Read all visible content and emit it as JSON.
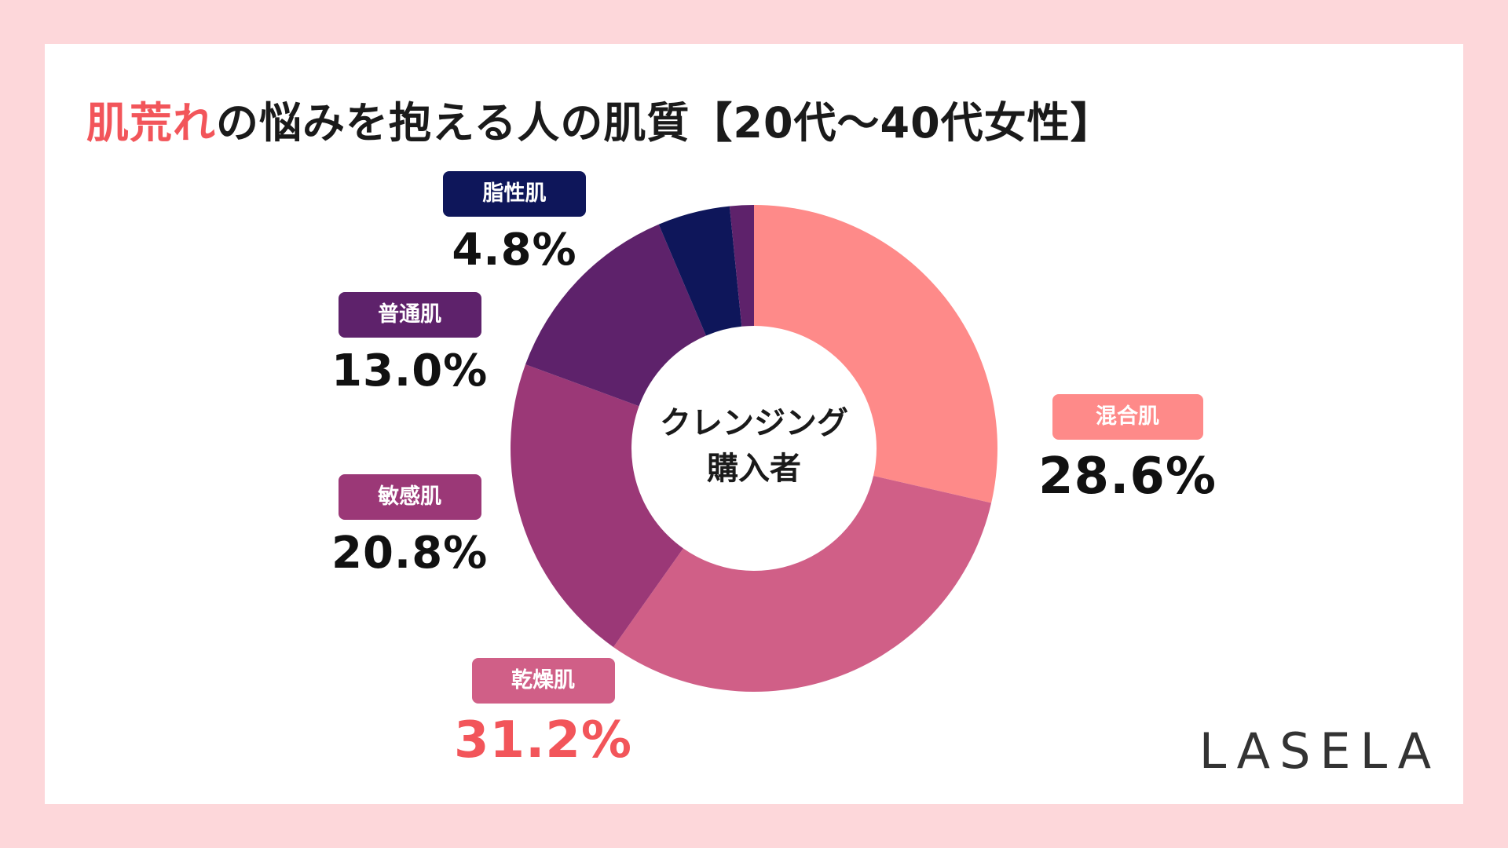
{
  "title_accent": "肌荒れ",
  "title_rest": "の悩みを抱える人の肌質【20代〜40代女性】",
  "center_line1": "クレンジング",
  "center_line2": "購入者",
  "logo": "LASELA",
  "colors": {
    "background": "#fdd7da",
    "accent": "#f2555a"
  },
  "chart_data": {
    "type": "pie",
    "donut": true,
    "title": "肌荒れの悩みを抱える人の肌質【20代〜40代女性】",
    "center_text": "クレンジング購入者",
    "unit": "%",
    "slices": [
      {
        "label": "混合肌",
        "value": 28.6,
        "display": "28.6%",
        "color": "#fe8a89"
      },
      {
        "label": "乾燥肌",
        "value": 31.2,
        "display": "31.2%",
        "color": "#d05f87"
      },
      {
        "label": "敏感肌",
        "value": 20.8,
        "display": "20.8%",
        "color": "#9b3877"
      },
      {
        "label": "普通肌",
        "value": 13.0,
        "display": "13.0%",
        "color": "#5e226b"
      },
      {
        "label": "脂性肌",
        "value": 4.8,
        "display": "4.8%",
        "color": "#0e165a"
      },
      {
        "label": "",
        "value": 1.6,
        "display": "",
        "color": "#5e226b"
      }
    ]
  }
}
